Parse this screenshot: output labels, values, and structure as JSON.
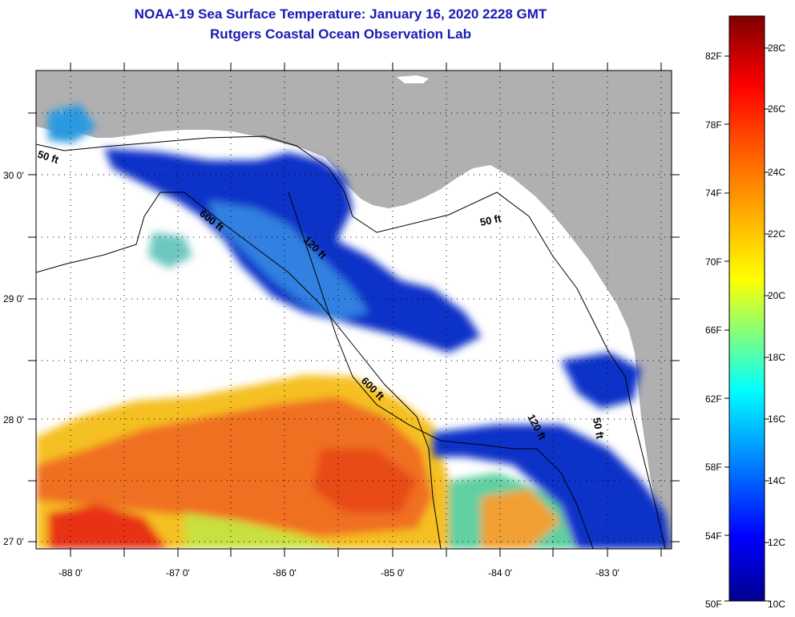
{
  "title": "NOAA-19 Sea Surface Temperature:  January 16, 2020 2228 GMT",
  "subtitle": "Rutgers Coastal Ocean Observation Lab",
  "lat_labels": [
    "30 0'",
    "29 0'",
    "28 0'",
    "27 0'"
  ],
  "lon_labels": [
    "-88 0'",
    "-87 0'",
    "-86 0'",
    "-85 0'",
    "-84 0'",
    "-83 0'"
  ],
  "contour_labels": [
    "50 ft",
    "600 ft",
    "120 ft",
    "50 ft",
    "600 ft",
    "120 ft",
    "50 ft"
  ],
  "colorbar": {
    "fahrenheit": [
      "82F",
      "78F",
      "74F",
      "70F",
      "66F",
      "62F",
      "58F",
      "54F",
      "50F"
    ],
    "celsius": [
      "28C",
      "26C",
      "24C",
      "22C",
      "20C",
      "18C",
      "16C",
      "14C",
      "12C",
      "10C"
    ]
  },
  "colors": {
    "land": "#b0b0b0",
    "title": "#1a1ab4",
    "cold": "#0a1fb8",
    "warm": "#e8401a"
  }
}
